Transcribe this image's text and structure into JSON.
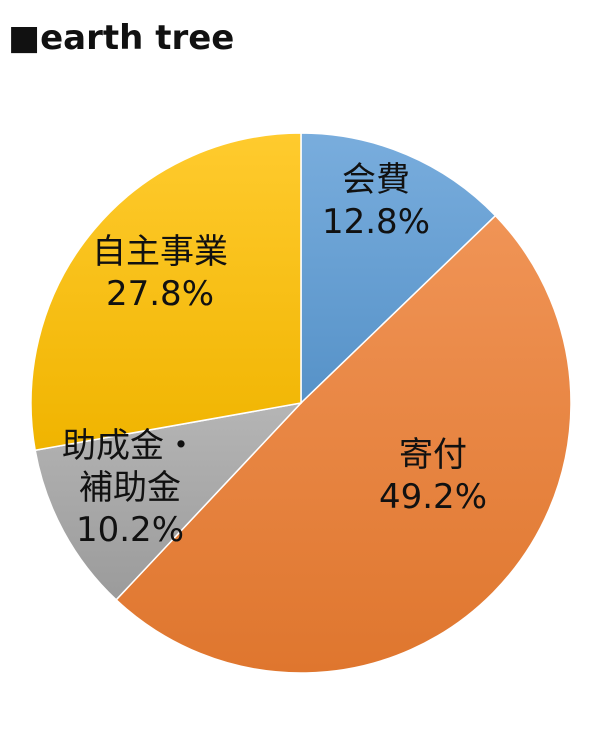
{
  "title": "■earth tree",
  "chart_data": {
    "type": "pie",
    "start_angle": "top",
    "direction": "clockwise",
    "slices": [
      {
        "name": "会費",
        "label_lines": [
          "会費"
        ],
        "percent_label": "12.8%",
        "value": 12.8,
        "color": "#5b9bd5"
      },
      {
        "name": "寄付",
        "label_lines": [
          "寄付"
        ],
        "percent_label": "49.2%",
        "value": 49.2,
        "color": "#ed7d31"
      },
      {
        "name": "助成金・補助金",
        "label_lines": [
          "助成金・",
          "補助金"
        ],
        "percent_label": "10.2%",
        "value": 10.2,
        "color": "#a5a5a5"
      },
      {
        "name": "自主事業",
        "label_lines": [
          "自主事業"
        ],
        "percent_label": "27.8%",
        "value": 27.8,
        "color": "#ffc000"
      }
    ]
  }
}
